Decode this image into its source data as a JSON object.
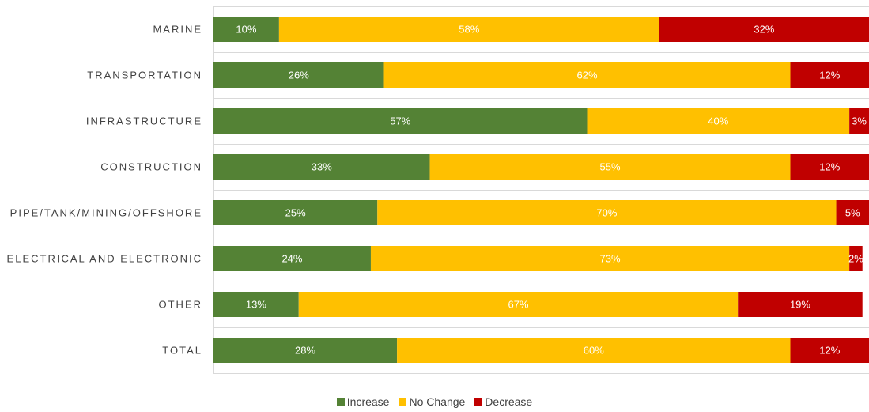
{
  "chart_data": {
    "type": "bar",
    "orientation": "horizontal",
    "stacked": "100%",
    "categories": [
      "MARINE",
      "TRANSPORTATION",
      "INFRASTRUCTURE",
      "CONSTRUCTION",
      "PIPE/TANK/MINING/OFFSHORE",
      "ELECTRICAL AND ELECTRONIC",
      "OTHER",
      "TOTAL"
    ],
    "series": [
      {
        "name": "Increase",
        "color": "#548235",
        "values": [
          10,
          26,
          57,
          33,
          25,
          24,
          13,
          28
        ],
        "labels": [
          "10%",
          "26%",
          "57%",
          "33%",
          "25%",
          "24%",
          "13%",
          "28%"
        ]
      },
      {
        "name": "No Change",
        "color": "#FFC000",
        "values": [
          58,
          62,
          40,
          55,
          70,
          73,
          67,
          60
        ],
        "labels": [
          "58%",
          "62%",
          "40%",
          "55%",
          "70%",
          "73%",
          "67%",
          "60%"
        ]
      },
      {
        "name": "Decrease",
        "color": "#C00000",
        "values": [
          32,
          12,
          3,
          12,
          5,
          2,
          19,
          12
        ],
        "labels": [
          "32%",
          "12%",
          "3%",
          "12%",
          "5%",
          "2%",
          "19%",
          "12%"
        ]
      }
    ],
    "xlim": [
      0,
      100
    ],
    "grid": true,
    "legend_position": "bottom"
  }
}
